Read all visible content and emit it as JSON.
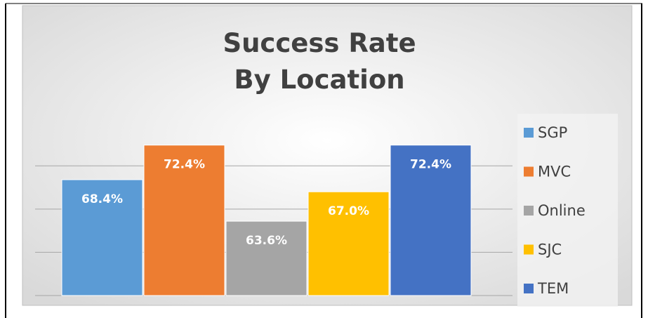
{
  "chart_data": {
    "type": "bar",
    "title": "Success Rate By Location",
    "categories": [
      "SGP",
      "MVC",
      "Online",
      "SJC",
      "TEM"
    ],
    "values": [
      68.4,
      72.4,
      63.6,
      67.0,
      72.4
    ],
    "value_labels": [
      "68.4%",
      "72.4%",
      "63.6%",
      "67.0%",
      "72.4%"
    ],
    "colors": [
      "#5b9bd5",
      "#ed7d31",
      "#a5a5a5",
      "#ffc000",
      "#4472c4"
    ],
    "ylim": [
      55,
      74
    ],
    "yticks": [
      55,
      60,
      65,
      70
    ],
    "grid": true,
    "legend": "right"
  }
}
